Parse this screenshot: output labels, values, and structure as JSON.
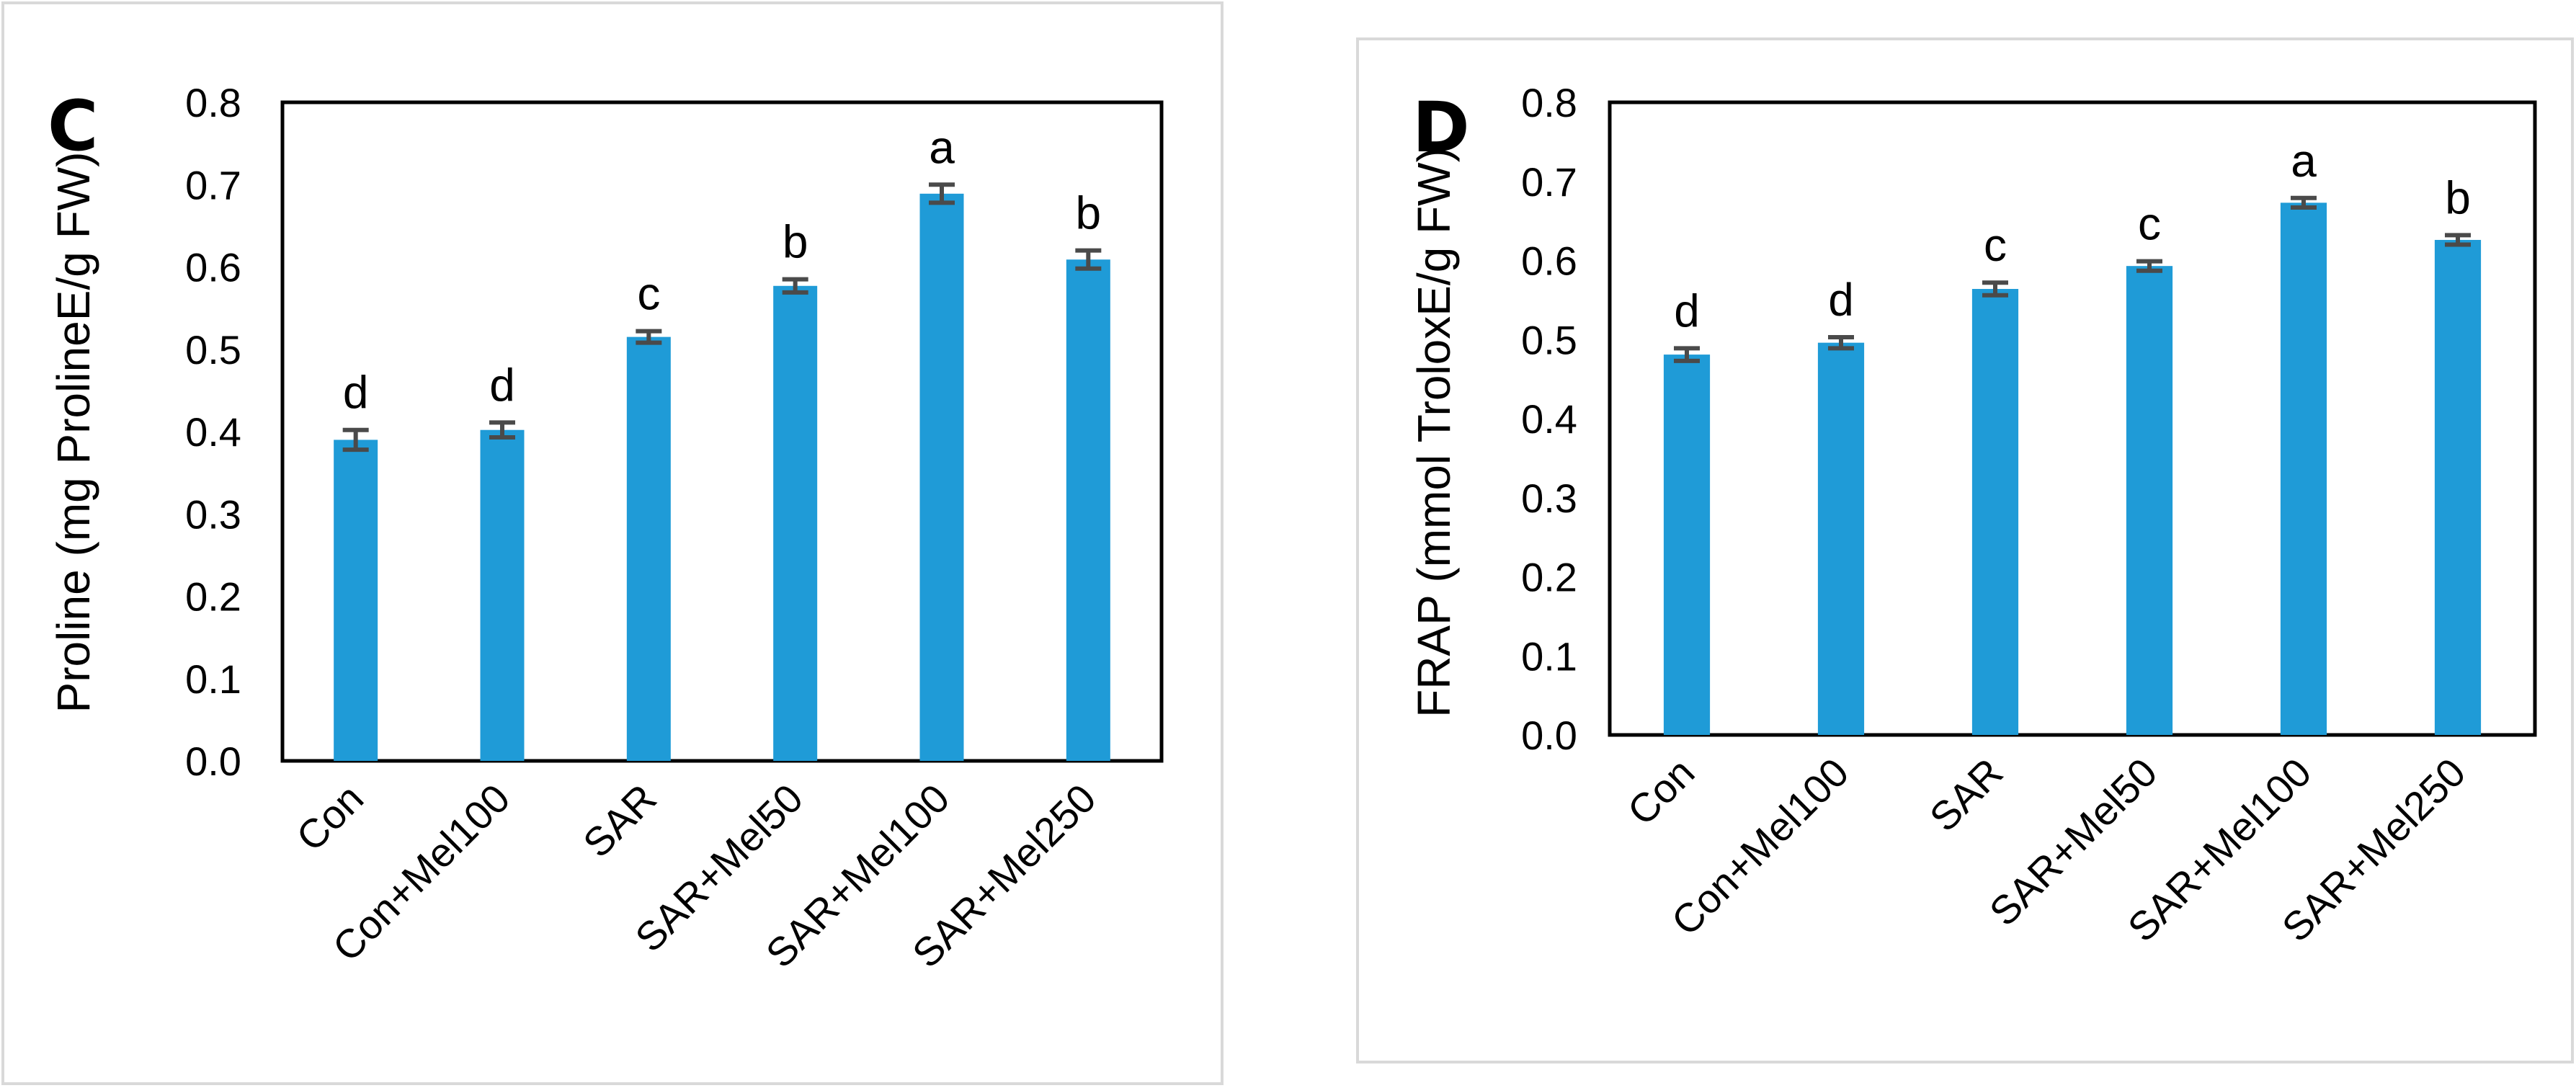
{
  "chart_data": [
    {
      "type": "bar",
      "panel_label": "C",
      "categories": [
        "Con",
        "Con+Mel100",
        "SAR",
        "SAR+Mel50",
        "SAR+Mel100",
        "SAR+Mel250"
      ],
      "values": [
        0.39,
        0.402,
        0.515,
        0.577,
        0.689,
        0.609
      ],
      "errors": [
        0.012,
        0.009,
        0.007,
        0.008,
        0.011,
        0.011
      ],
      "significance": [
        "d",
        "d",
        "c",
        "b",
        "a",
        "b"
      ],
      "title": "",
      "xlabel": "",
      "ylabel": "Proline (mg ProlineE/g FW)",
      "ylim": [
        0,
        0.8
      ],
      "yticks": [
        "0.0",
        "0.1",
        "0.2",
        "0.3",
        "0.4",
        "0.5",
        "0.6",
        "0.7",
        "0.8"
      ],
      "bar_color": "#1f9bd7",
      "error_color": "#4a4a4a",
      "grid": false,
      "legend": "none"
    },
    {
      "type": "bar",
      "panel_label": "D",
      "categories": [
        "Con",
        "Con+Mel100",
        "SAR",
        "SAR+Mel50",
        "SAR+Mel100",
        "SAR+Mel250"
      ],
      "values": [
        0.481,
        0.496,
        0.564,
        0.593,
        0.673,
        0.626
      ],
      "errors": [
        0.008,
        0.007,
        0.008,
        0.006,
        0.006,
        0.006
      ],
      "significance": [
        "d",
        "d",
        "c",
        "c",
        "a",
        "b"
      ],
      "title": "",
      "xlabel": "",
      "ylabel": "FRAP (mmol TroloxE/g FW)",
      "ylim": [
        0,
        0.8
      ],
      "yticks": [
        "0.0",
        "0.1",
        "0.2",
        "0.3",
        "0.4",
        "0.5",
        "0.6",
        "0.7",
        "0.8"
      ],
      "bar_color": "#1f9bd7",
      "error_color": "#4a4a4a",
      "grid": false,
      "legend": "none"
    }
  ]
}
